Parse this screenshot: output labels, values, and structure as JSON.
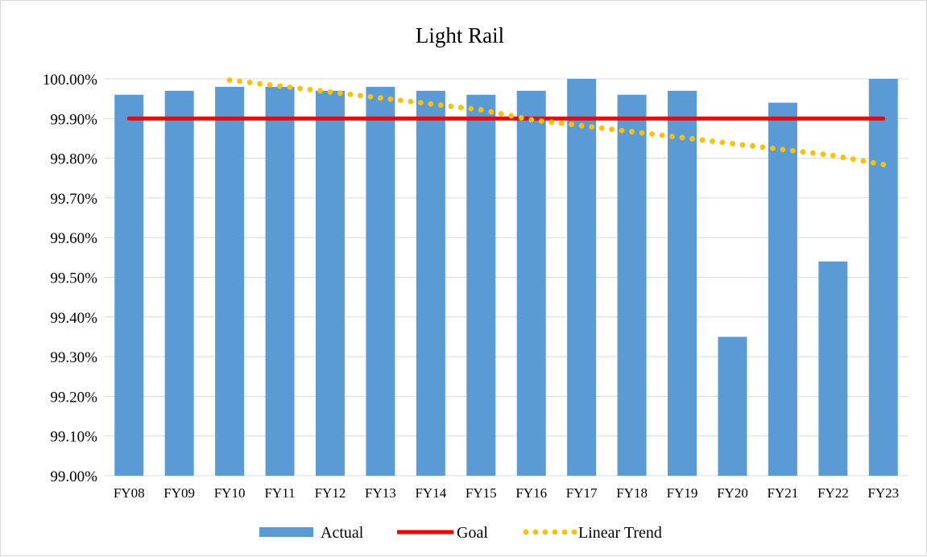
{
  "chart_data": {
    "type": "bar",
    "title": "Light Rail",
    "xlabel": "",
    "ylabel": "",
    "categories": [
      "FY08",
      "FY09",
      "FY10",
      "FY11",
      "FY12",
      "FY13",
      "FY14",
      "FY15",
      "FY16",
      "FY17",
      "FY18",
      "FY19",
      "FY20",
      "FY21",
      "FY22",
      "FY23"
    ],
    "series": [
      {
        "name": "Actual",
        "type": "bar",
        "color": "#5b9bd5",
        "values": [
          99.96,
          99.97,
          99.98,
          99.98,
          99.97,
          99.98,
          99.97,
          99.96,
          99.97,
          100.0,
          99.96,
          99.97,
          99.35,
          99.94,
          99.54,
          100.0
        ]
      },
      {
        "name": "Goal",
        "type": "line",
        "color": "#ff0000",
        "values": [
          99.9,
          99.9,
          99.9,
          99.9,
          99.9,
          99.9,
          99.9,
          99.9,
          99.9,
          99.9,
          99.9,
          99.9,
          99.9,
          99.9,
          99.9,
          99.9
        ]
      },
      {
        "name": "Linear Trend",
        "type": "trendline-dotted",
        "color": "#ffc000",
        "values": [
          100.023,
          100.008,
          99.997,
          99.982,
          99.967,
          99.952,
          99.937,
          99.922,
          99.897,
          99.882,
          99.867,
          99.852,
          99.837,
          99.822,
          99.807,
          99.784
        ]
      }
    ],
    "ylim": [
      99.0,
      100.0
    ],
    "yticks": [
      "99.00%",
      "99.10%",
      "99.20%",
      "99.30%",
      "99.40%",
      "99.50%",
      "99.60%",
      "99.70%",
      "99.80%",
      "99.90%",
      "100.00%"
    ],
    "grid": "horizontal",
    "legend": "bottom"
  }
}
